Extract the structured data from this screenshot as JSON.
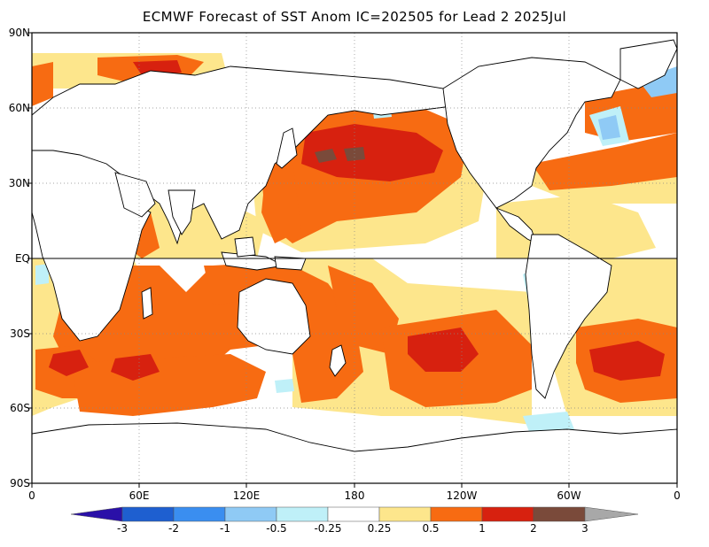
{
  "title": "ECMWF Forecast of SST Anom IC=202505 for Lead 2 2025Jul",
  "lat_labels": [
    "90N",
    "60N",
    "30N",
    "EQ",
    "30S",
    "60S",
    "90S"
  ],
  "lon_labels": [
    "0",
    "60E",
    "120E",
    "180",
    "120W",
    "60W",
    "0"
  ],
  "colorbar": {
    "labels": [
      "-3",
      "-2",
      "-1",
      "-0.5",
      "-0.25",
      "0.25",
      "0.5",
      "1",
      "2",
      "3"
    ],
    "colors": {
      "below_-3": "#2a10a8",
      "-3_-2": "#1e5fd0",
      "-2_-1": "#3a8ef0",
      "-1_-0.5": "#8fcaf5",
      "-0.5_-0.25": "#bff0f8",
      "-0.25_0.25": "#ffffff",
      "0.25_0.5": "#fde68c",
      "0.5_1": "#f76b12",
      "1_2": "#d7210f",
      "2_3": "#7a4a3a",
      "above_3": "#a8a8a8"
    }
  }
}
